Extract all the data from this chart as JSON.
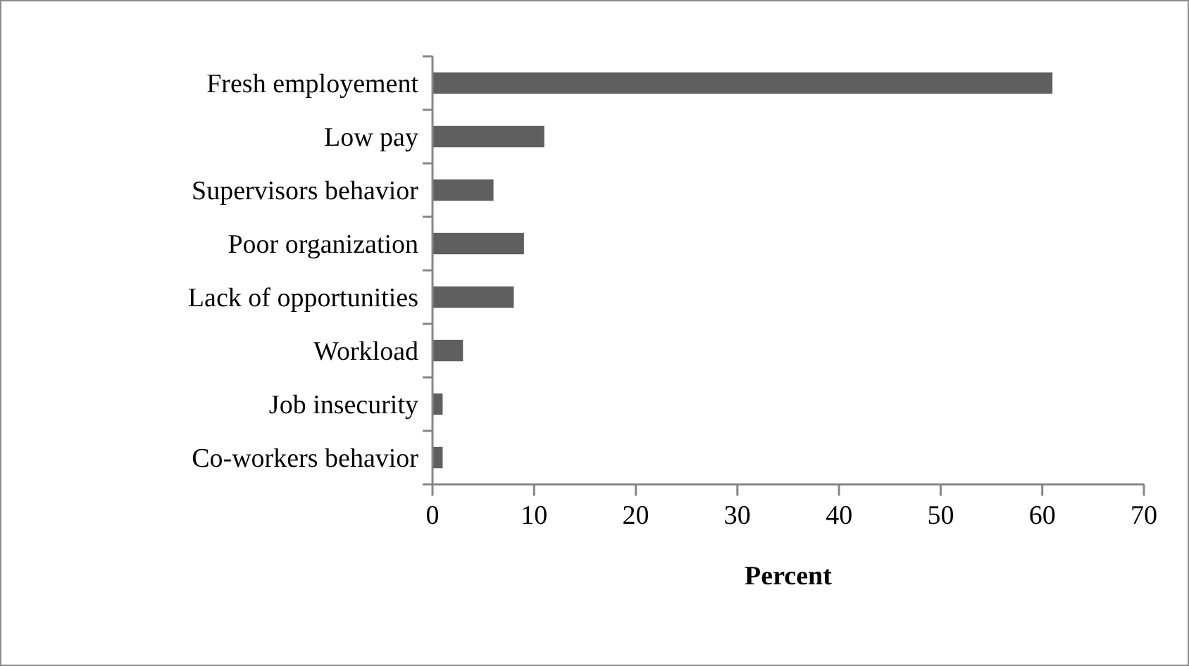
{
  "chart_data": {
    "type": "bar",
    "orientation": "horizontal",
    "xlabel": "Percent",
    "categories": [
      "Fresh employement",
      "Low pay",
      "Supervisors behavior",
      "Poor organization",
      "Lack of opportunities",
      "Workload",
      "Job insecurity",
      "Co-workers behavior"
    ],
    "values": [
      61,
      11,
      6,
      9,
      8,
      3,
      1,
      1
    ],
    "color": "#5f5f5f",
    "xlim": [
      0,
      70
    ],
    "xticks": [
      0,
      10,
      20,
      30,
      40,
      50,
      60,
      70
    ],
    "grid": false
  }
}
